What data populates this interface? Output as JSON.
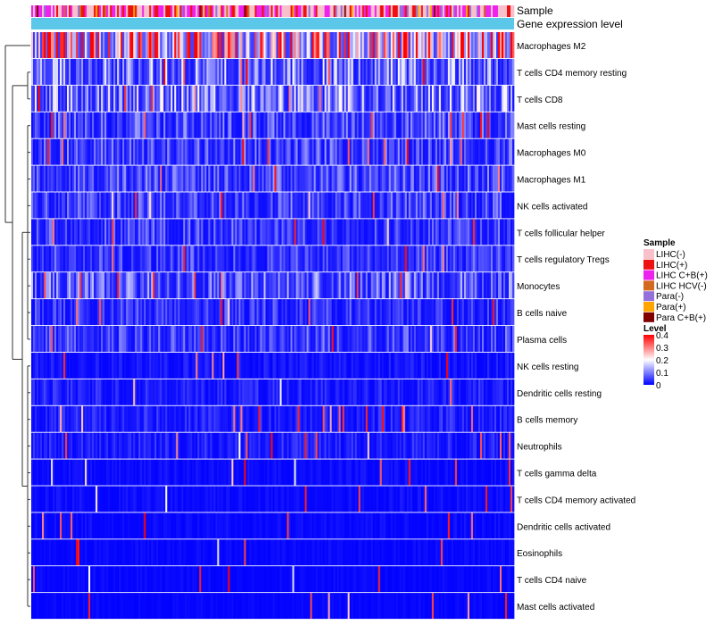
{
  "chart_data": {
    "type": "heatmap",
    "title": "",
    "annotation_rows": [
      {
        "name": "Sample",
        "label": "Sample"
      },
      {
        "name": "Gene expression level",
        "label": "Gene expression level",
        "color": "#5bc8ea"
      }
    ],
    "rows": [
      {
        "name": "Macrophages M2",
        "mean": 0.3
      },
      {
        "name": "T cells CD4 memory resting",
        "mean": 0.11
      },
      {
        "name": "T cells CD8",
        "mean": 0.12
      },
      {
        "name": "Mast cells resting",
        "mean": 0.07
      },
      {
        "name": "Macrophages M0",
        "mean": 0.07
      },
      {
        "name": "Macrophages M1",
        "mean": 0.07
      },
      {
        "name": "NK cells activated",
        "mean": 0.065
      },
      {
        "name": "T cells follicular helper",
        "mean": 0.06
      },
      {
        "name": "T cells regulatory  Tregs",
        "mean": 0.055
      },
      {
        "name": "Monocytes",
        "mean": 0.085
      },
      {
        "name": "B cells naive",
        "mean": 0.05
      },
      {
        "name": "Plasma cells",
        "mean": 0.06
      },
      {
        "name": "NK cells resting",
        "mean": 0.02
      },
      {
        "name": "Dendritic cells resting",
        "mean": 0.03
      },
      {
        "name": "B cells memory",
        "mean": 0.03
      },
      {
        "name": "Neutrophils",
        "mean": 0.03
      },
      {
        "name": "T cells gamma delta",
        "mean": 0.012
      },
      {
        "name": "T cells CD4 memory activated",
        "mean": 0.012
      },
      {
        "name": "Dendritic cells activated",
        "mean": 0.01
      },
      {
        "name": "Eosinophils",
        "mean": 0.008
      },
      {
        "name": "T cells CD4 naive",
        "mean": 0.008
      },
      {
        "name": "Mast cells activated",
        "mean": 0.006
      }
    ],
    "sample_legend": {
      "title": "Sample",
      "entries": [
        {
          "label": "LIHC(-)",
          "color": "#f8c0cb"
        },
        {
          "label": "LIHC(+)",
          "color": "#ee1111"
        },
        {
          "label": "LIHC C+B(+)",
          "color": "#ee22ee"
        },
        {
          "label": "LIHC HCV(-)",
          "color": "#d2691e"
        },
        {
          "label": "Para(-)",
          "color": "#9370db"
        },
        {
          "label": "Para(+)",
          "color": "#ffa500"
        },
        {
          "label": "Para C+B(+)",
          "color": "#800000"
        }
      ]
    },
    "level_legend": {
      "title": "Level",
      "range": [
        0,
        0.4
      ],
      "ticks": [
        {
          "value": 0.4,
          "label": "0.4"
        },
        {
          "value": 0.3,
          "label": "0.3"
        },
        {
          "value": 0.2,
          "label": "0.2"
        },
        {
          "value": 0.1,
          "label": "0.1"
        },
        {
          "value": 0,
          "label": "0"
        }
      ],
      "colors": [
        "#0000ff",
        "#ffffff",
        "#ff0000"
      ]
    }
  }
}
